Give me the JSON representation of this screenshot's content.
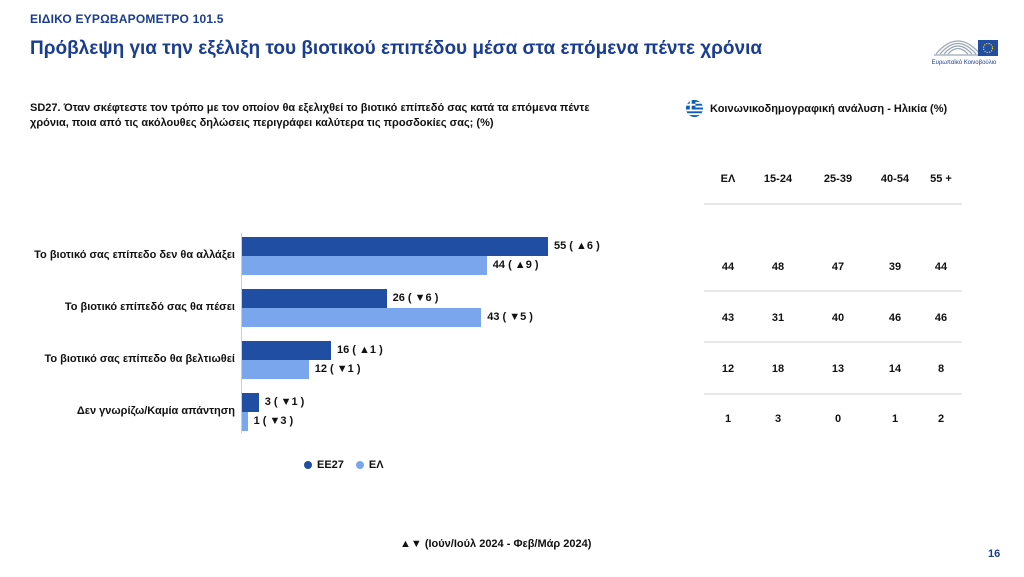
{
  "header": {
    "kicker": "ΕΙΔΙΚΟ ΕΥΡΩΒΑΡΟΜΕΤΡΟ 101.5",
    "title": "Πρόβλεψη για την εξέλιξη του βιοτικού επιπέδου μέσα στα επόμενα πέντε χρόνια",
    "logo_text": "Ευρωπαϊκό Κοινοβούλιο"
  },
  "question": "SD27. Όταν σκέφτεστε τον τρόπο με τον οποίον θα εξελιχθεί το βιοτικό επίπεδό σας κατά τα επόμενα πέντε χρόνια, ποια από τις ακόλουθες δηλώσεις περιγράφει καλύτερα τις προσδοκίες σας; (%)",
  "socio": {
    "title": "Κοινωνικοδημογραφική ανάλυση - Ηλικία (%)",
    "columns": [
      "ΕΛ",
      "15-24",
      "25-39",
      "40-54",
      "55 +"
    ],
    "rows": [
      [
        "44",
        "48",
        "47",
        "39",
        "44"
      ],
      [
        "43",
        "31",
        "40",
        "46",
        "46"
      ],
      [
        "12",
        "18",
        "13",
        "14",
        "8"
      ],
      [
        "1",
        "3",
        "0",
        "1",
        "2"
      ]
    ]
  },
  "chart_data": {
    "type": "bar",
    "orientation": "horizontal",
    "categories": [
      "Το βιοτικό σας επίπεδο δεν θα αλλάξει",
      "Το βιοτικό επίπεδό σας θα πέσει",
      "Το βιοτικό σας επίπεδο θα βελτιωθεί",
      "Δεν γνωρίζω/Καμία απάντηση"
    ],
    "series": [
      {
        "name": "ΕΕ27",
        "values": [
          55,
          26,
          16,
          3
        ],
        "labels": [
          "55 ( ▲6 )",
          "26 ( ▼6 )",
          "16 ( ▲1 )",
          "3 ( ▼1 )"
        ],
        "color": "#1f4ea3"
      },
      {
        "name": "ΕΛ",
        "values": [
          44,
          43,
          12,
          1
        ],
        "labels": [
          "44 ( ▲9 )",
          "43 ( ▼5 )",
          "12 ( ▼1 )",
          "1 ( ▼3 )"
        ],
        "color": "#7aa6ee"
      }
    ],
    "xlim": [
      0,
      60
    ],
    "grid": false,
    "legend": "bottom"
  },
  "footer": {
    "note": "▲▼ (Ιούν/Ιούλ 2024 - Φεβ/Μάρ 2024)",
    "page": "16"
  }
}
